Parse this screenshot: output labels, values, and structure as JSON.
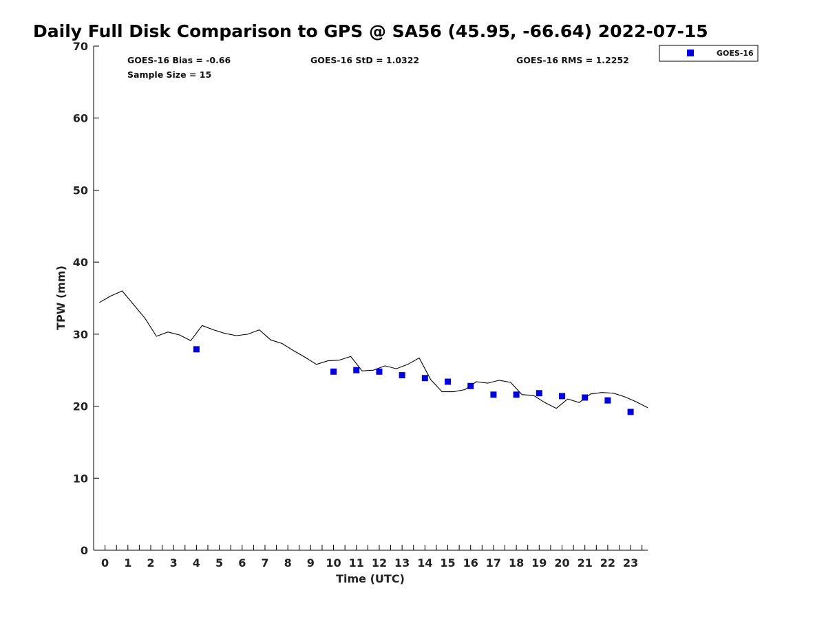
{
  "chart_data": {
    "type": "scatter",
    "title": "Daily Full Disk Comparison to GPS @ SA56 (45.95, -66.64) 2022-07-15",
    "xlabel": "Time (UTC)",
    "ylabel": "TPW (mm)",
    "xlim": [
      -0.5,
      23.75
    ],
    "ylim": [
      0,
      70
    ],
    "x_ticks": [
      0,
      1,
      2,
      3,
      4,
      5,
      6,
      7,
      8,
      9,
      10,
      11,
      12,
      13,
      14,
      15,
      16,
      17,
      18,
      19,
      20,
      21,
      22,
      23
    ],
    "y_ticks": [
      0,
      10,
      20,
      30,
      40,
      50,
      60,
      70
    ],
    "stats": {
      "bias": "GOES-16 Bias = -0.66",
      "sample_size": "Sample Size = 15",
      "std": "GOES-16 StD = 1.0322",
      "rms": "GOES-16 RMS = 1.2252"
    },
    "legend": {
      "label": "GOES-16",
      "color": "#0000dd",
      "placement": "top-right outside"
    },
    "gps_line": {
      "color": "#000000",
      "x": [
        -0.25,
        0.25,
        0.75,
        1.25,
        1.75,
        2.25,
        2.75,
        3.25,
        3.75,
        4.25,
        4.75,
        5.25,
        5.75,
        6.25,
        6.75,
        7.25,
        7.75,
        8.25,
        8.75,
        9.25,
        9.75,
        10.25,
        10.75,
        11.25,
        11.75,
        12.25,
        12.75,
        13.25,
        13.75,
        14.25,
        14.75,
        15.25,
        15.75,
        16.25,
        16.75,
        17.25,
        17.75,
        18.25,
        18.75,
        19.25,
        19.75,
        20.25,
        20.75,
        21.25,
        21.75,
        22.25,
        22.75,
        23.25,
        23.75
      ],
      "y": [
        34.4,
        35.3,
        36.0,
        34.1,
        32.2,
        29.7,
        30.3,
        29.9,
        29.1,
        31.2,
        30.6,
        30.1,
        29.8,
        30.0,
        30.6,
        29.2,
        28.7,
        27.7,
        26.8,
        25.8,
        26.3,
        26.4,
        26.9,
        24.9,
        25.0,
        25.6,
        25.2,
        25.8,
        26.7,
        23.7,
        22.0,
        22.0,
        22.3,
        23.4,
        23.2,
        23.6,
        23.3,
        21.6,
        21.5,
        20.5,
        19.7,
        21.0,
        20.5,
        21.7,
        21.9,
        21.8,
        21.3,
        20.6,
        19.8
      ]
    },
    "series": [
      {
        "name": "GOES-16",
        "color": "#0000dd",
        "x": [
          4,
          10,
          11,
          12,
          13,
          14,
          15,
          16,
          17,
          18,
          19,
          20,
          21,
          22,
          23
        ],
        "y": [
          27.9,
          24.8,
          25.0,
          24.8,
          24.3,
          23.9,
          23.4,
          22.8,
          21.6,
          21.6,
          21.8,
          21.4,
          21.2,
          20.8,
          19.2
        ]
      }
    ]
  }
}
